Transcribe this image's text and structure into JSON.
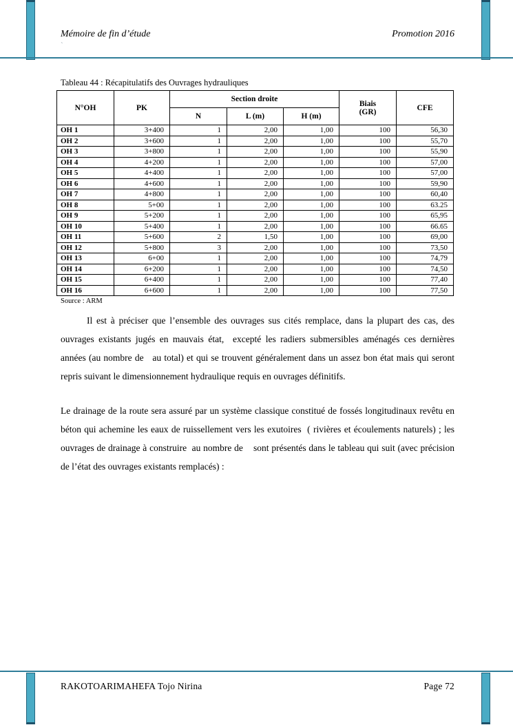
{
  "header": {
    "left_text": "Mémoire de fin d’étude",
    "right_text": "Promotion 2016",
    "stray_mark": "`"
  },
  "table": {
    "caption": "Tableau 44 : Récapitulatifs des Ouvrages hydrauliques",
    "col_noh": "N°OH",
    "col_pk": "PK",
    "col_section": "Section droite",
    "col_n": "N",
    "col_l": "L (m)",
    "col_h": "H (m)",
    "col_biais_line1": "Biais",
    "col_biais_line2": "(GR)",
    "col_cfe": "CFE",
    "rows": [
      [
        "OH 1",
        "3+400",
        "1",
        "2,00",
        "1,00",
        "100",
        "56,30"
      ],
      [
        "OH 2",
        "3+600",
        "1",
        "2,00",
        "1,00",
        "100",
        "55,70"
      ],
      [
        "OH 3",
        "3+800",
        "1",
        "2,00",
        "1,00",
        "100",
        "55,90"
      ],
      [
        "OH 4",
        "4+200",
        "1",
        "2,00",
        "1,00",
        "100",
        "57,00"
      ],
      [
        "OH 5",
        "4+400",
        "1",
        "2,00",
        "1,00",
        "100",
        "57,00"
      ],
      [
        "OH 6",
        "4+600",
        "1",
        "2,00",
        "1,00",
        "100",
        "59,90"
      ],
      [
        "OH 7",
        "4+800",
        "1",
        "2,00",
        "1,00",
        "100",
        "60,40"
      ],
      [
        "OH 8",
        "5+00",
        "1",
        "2,00",
        "1,00",
        "100",
        "63.25"
      ],
      [
        "OH 9",
        "5+200",
        "1",
        "2,00",
        "1,00",
        "100",
        "65,95"
      ],
      [
        "OH 10",
        "5+400",
        "1",
        "2,00",
        "1,00",
        "100",
        "66.65"
      ],
      [
        "OH 11",
        "5+600",
        "2",
        "1,50",
        "1,00",
        "100",
        "69,00"
      ],
      [
        "OH 12",
        "5+800",
        "3",
        "2,00",
        "1,00",
        "100",
        "73,50"
      ],
      [
        "OH 13",
        "6+00",
        "1",
        "2,00",
        "1,00",
        "100",
        "74,79"
      ],
      [
        "OH 14",
        "6+200",
        "1",
        "2,00",
        "1,00",
        "100",
        "74,50"
      ],
      [
        "OH 15",
        "6+400",
        "1",
        "2,00",
        "1,00",
        "100",
        "77,40"
      ],
      [
        "OH 16",
        "6+600",
        "1",
        "2,00",
        "1,00",
        "100",
        "77,50"
      ]
    ],
    "source": "Source : ARM"
  },
  "paragraphs": {
    "p1": "Il est à préciser que l’ensemble des ouvrages sus cités remplace, dans la plupart des cas, des ouvrages existants jugés en mauvais état,  excepté les radiers submersibles aménagés ces dernières années (au nombre de   au total) et qui se trouvent généralement dans un assez bon état mais qui seront repris suivant le dimensionnement hydraulique requis en ouvrages définitifs.",
    "p2": "Le drainage de la route sera assuré par un système classique constitué de fossés longitudinaux revêtu en béton qui achemine les eaux de ruissellement vers les exutoires  ( rivières et écoulements naturels) ; les ouvrages de drainage à construire  au nombre de    sont présentés dans le tableau qui suit (avec précision de l’état des ouvrages existants remplacés) :"
  },
  "footer": {
    "left_text": "RAKOTOARIMAHEFA Tojo Nirina",
    "right_text": "Page 72"
  },
  "colors": {
    "accent_teal": "#4aabc5",
    "teal_border": "#24637c",
    "rule_teal": "#2e7d99"
  }
}
